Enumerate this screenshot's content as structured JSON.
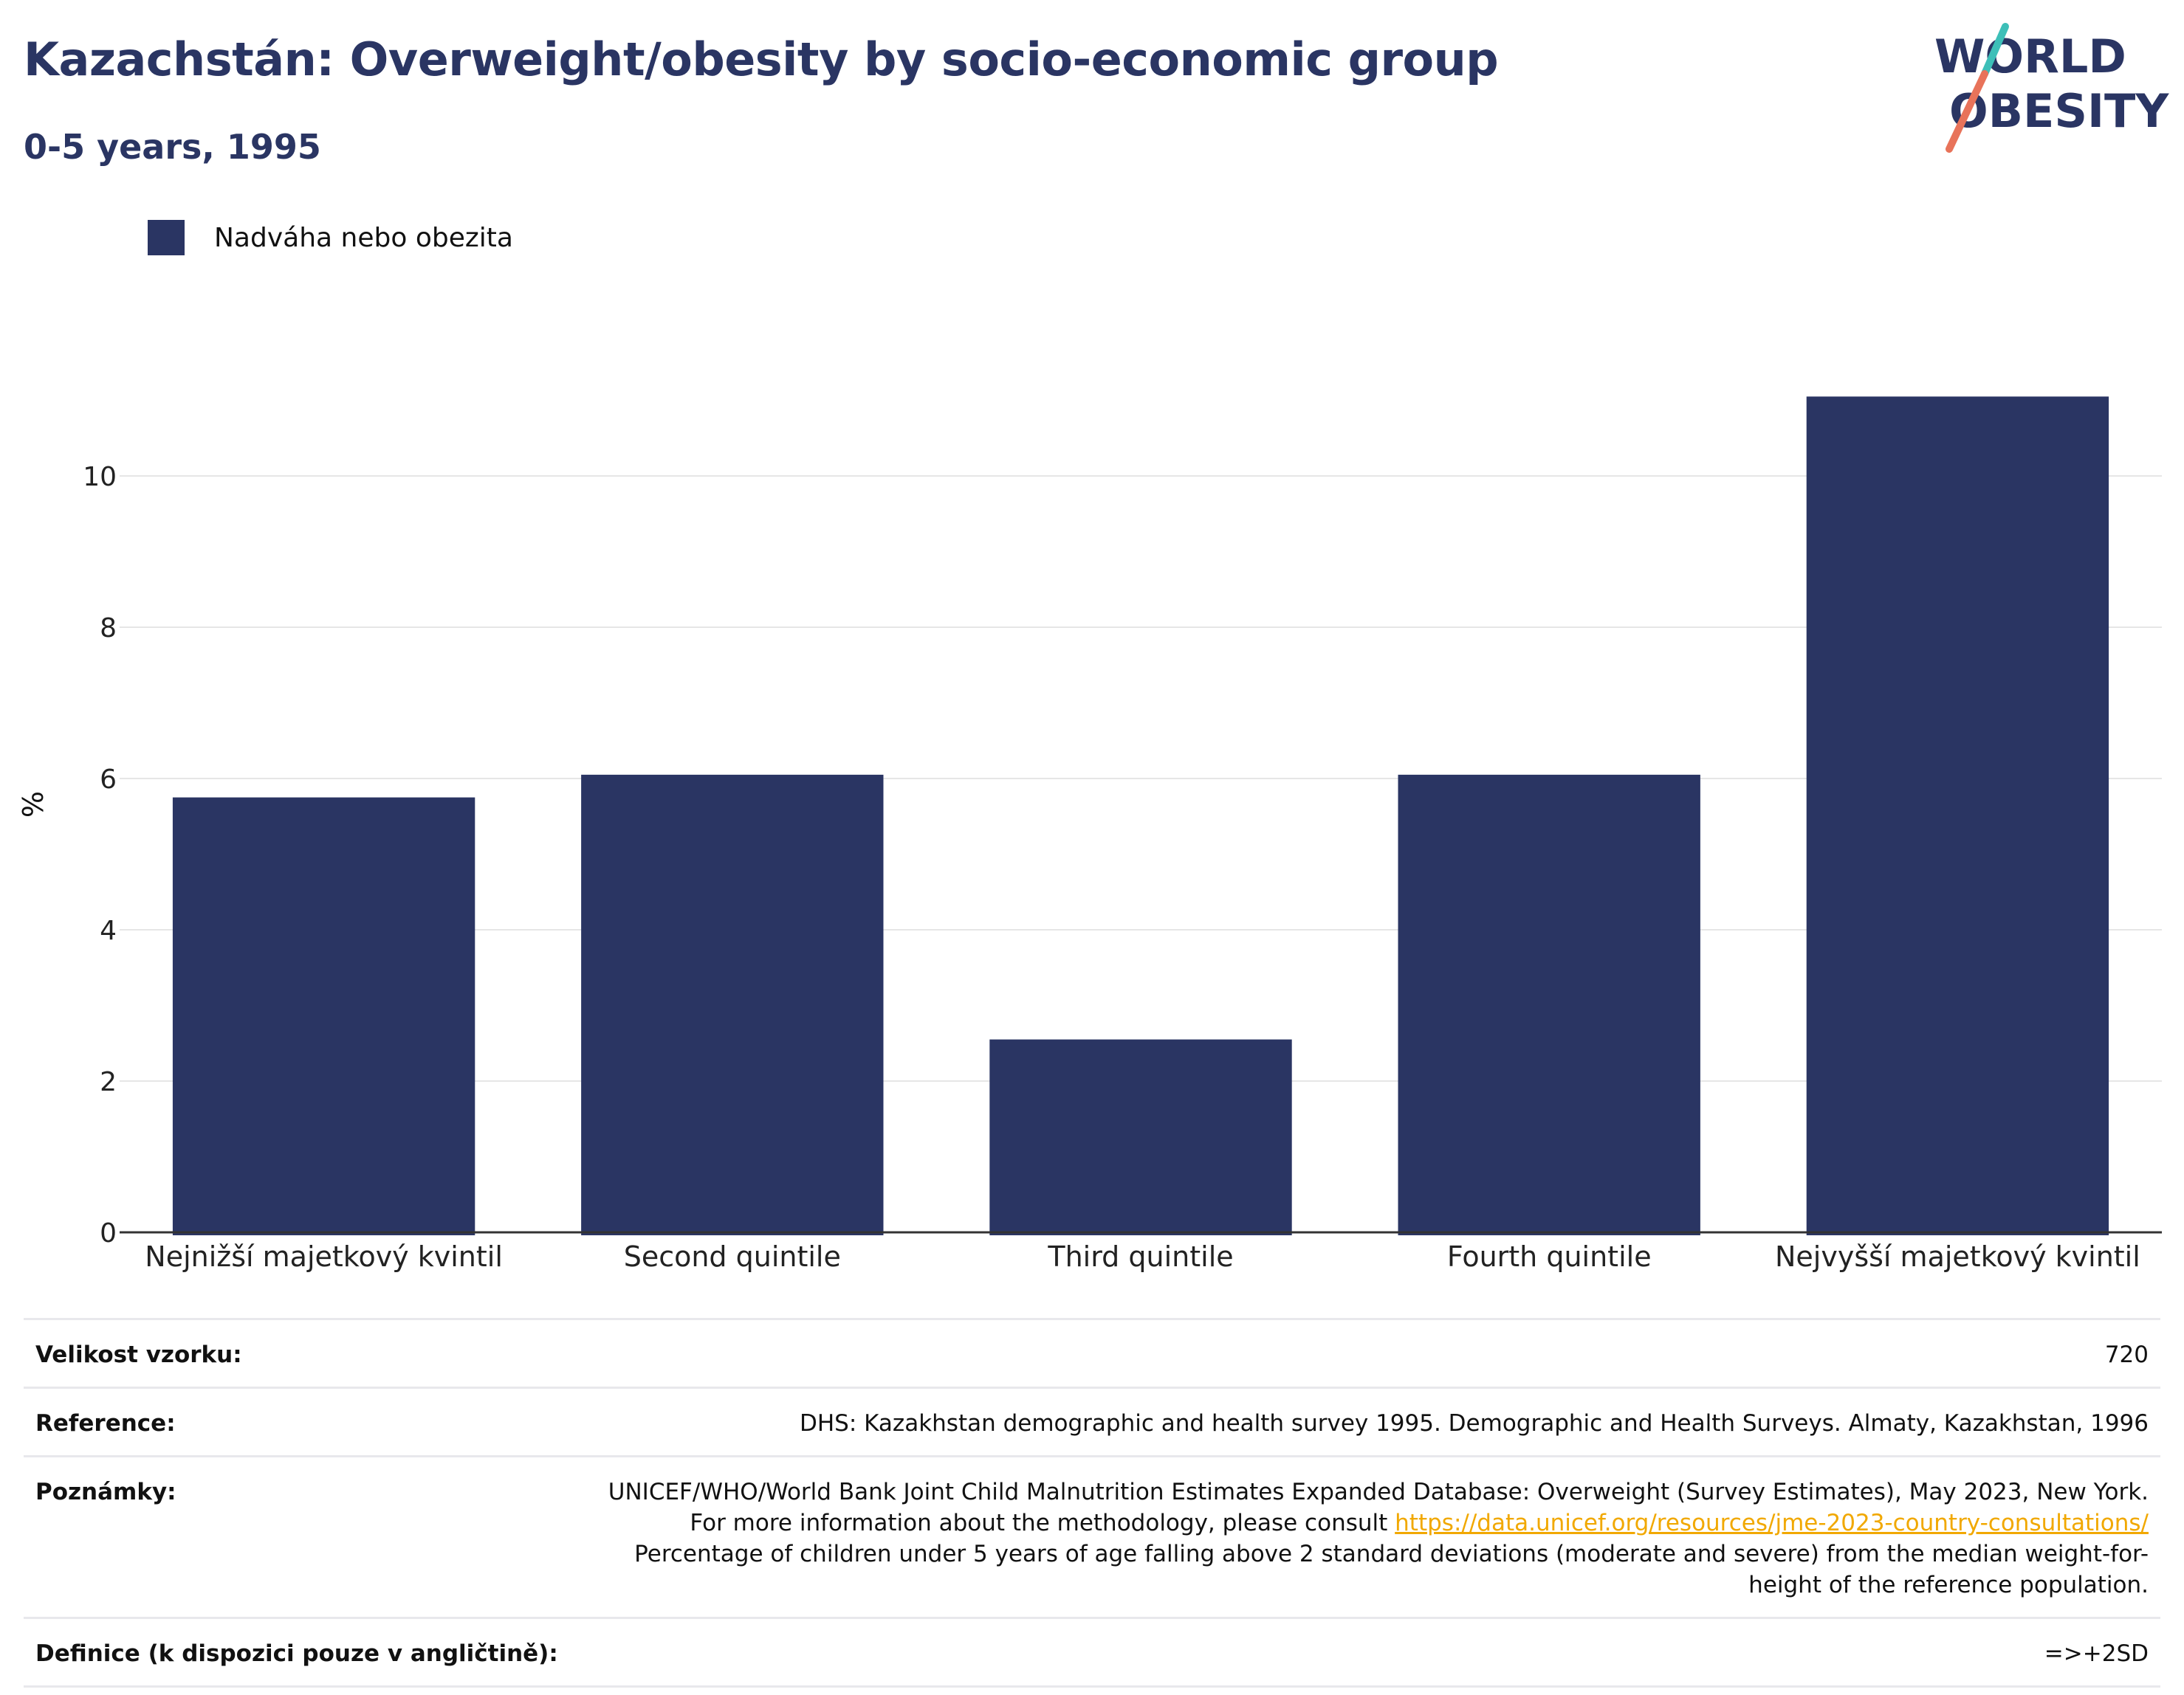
{
  "header": {
    "title": "Kazachstán: Overweight/obesity by socio-economic group",
    "subtitle": "0-5 years, 1995"
  },
  "logo": {
    "line1": "WORLD",
    "line2": "OBESITY"
  },
  "colors": {
    "bar": "#2a3563",
    "title": "#2a3563",
    "logo_teal": "#3dbfb8",
    "logo_coral": "#e8735a",
    "link": "#f1a800"
  },
  "chart_data": {
    "type": "bar",
    "categories": [
      "Nejnižší majetkový kvintil",
      "Second quintile",
      "Third quintile",
      "Fourth quintile",
      "Nejvyšší majetkový kvintil"
    ],
    "series": [
      {
        "name": "Nadváha nebo obezita",
        "values": [
          5.75,
          6.05,
          2.55,
          6.05,
          11.05
        ]
      }
    ],
    "ylabel": "%",
    "ylim": [
      0,
      12
    ],
    "yticks": [
      0,
      2,
      4,
      6,
      8,
      10
    ],
    "grid": true,
    "legend_position": "top-left"
  },
  "info": {
    "sample_label": "Velikost vzorku:",
    "sample_value": "720",
    "reference_label": "Reference:",
    "reference_value": "DHS: Kazakhstan demographic and health survey 1995. Demographic and Health Surveys. Almaty, Kazakhstan, 1996",
    "notes_label": "Poznámky:",
    "notes_text_1": "UNICEF/WHO/World Bank Joint Child Malnutrition Estimates Expanded Database: Overweight (Survey Estimates), May 2023, New York. For more information about the methodology, please consult",
    "notes_link": "https://data.unicef.org/resources/jme-2023-country-consultations/",
    "notes_text_2": "Percentage of children under 5 years of age falling above 2 standard deviations (moderate and severe) from the median weight-for-height of the reference population.",
    "definition_label": "Definice (k dispozici pouze v angličtině):",
    "definition_value": "=>+2SD"
  }
}
